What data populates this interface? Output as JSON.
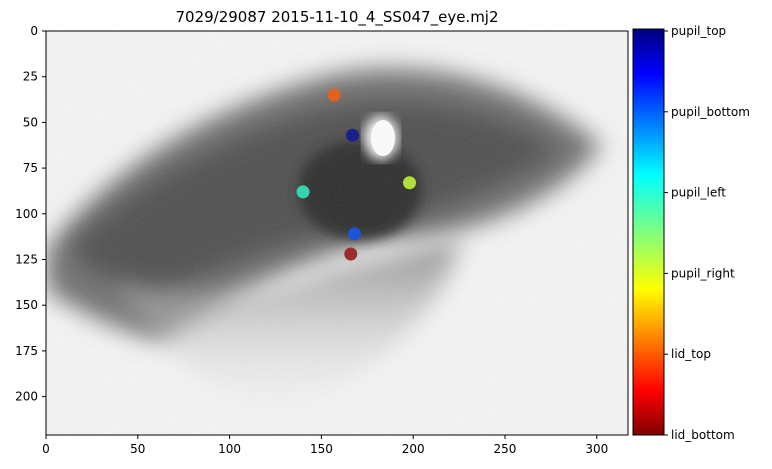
{
  "chart_data": {
    "type": "scatter",
    "title": "7029/29087 2015-11-10_4_SS047_eye.mj2",
    "xlim": [
      0,
      317
    ],
    "ylim": [
      221,
      0
    ],
    "x_ticks": [
      0,
      50,
      100,
      150,
      200,
      250,
      300
    ],
    "y_ticks": [
      0,
      25,
      50,
      75,
      100,
      125,
      150,
      175,
      200
    ],
    "background": "grayscale eye video frame",
    "points": [
      {
        "label": "lid_top",
        "x": 157,
        "y": 35,
        "color": "#e0621f"
      },
      {
        "label": "pupil_top",
        "x": 167,
        "y": 57,
        "color": "#1a1f8c"
      },
      {
        "label": "pupil_left",
        "x": 140,
        "y": 88,
        "color": "#35d4b0"
      },
      {
        "label": "pupil_right",
        "x": 198,
        "y": 83,
        "color": "#b2df3a"
      },
      {
        "label": "pupil_bottom",
        "x": 168,
        "y": 111,
        "color": "#1c54d9"
      },
      {
        "label": "lid_bottom",
        "x": 166,
        "y": 122,
        "color": "#9a2e2e"
      }
    ],
    "colorbar": {
      "labels": [
        "pupil_top",
        "pupil_bottom",
        "pupil_left",
        "pupil_right",
        "lid_top",
        "lid_bottom"
      ],
      "colormap": "jet"
    }
  }
}
